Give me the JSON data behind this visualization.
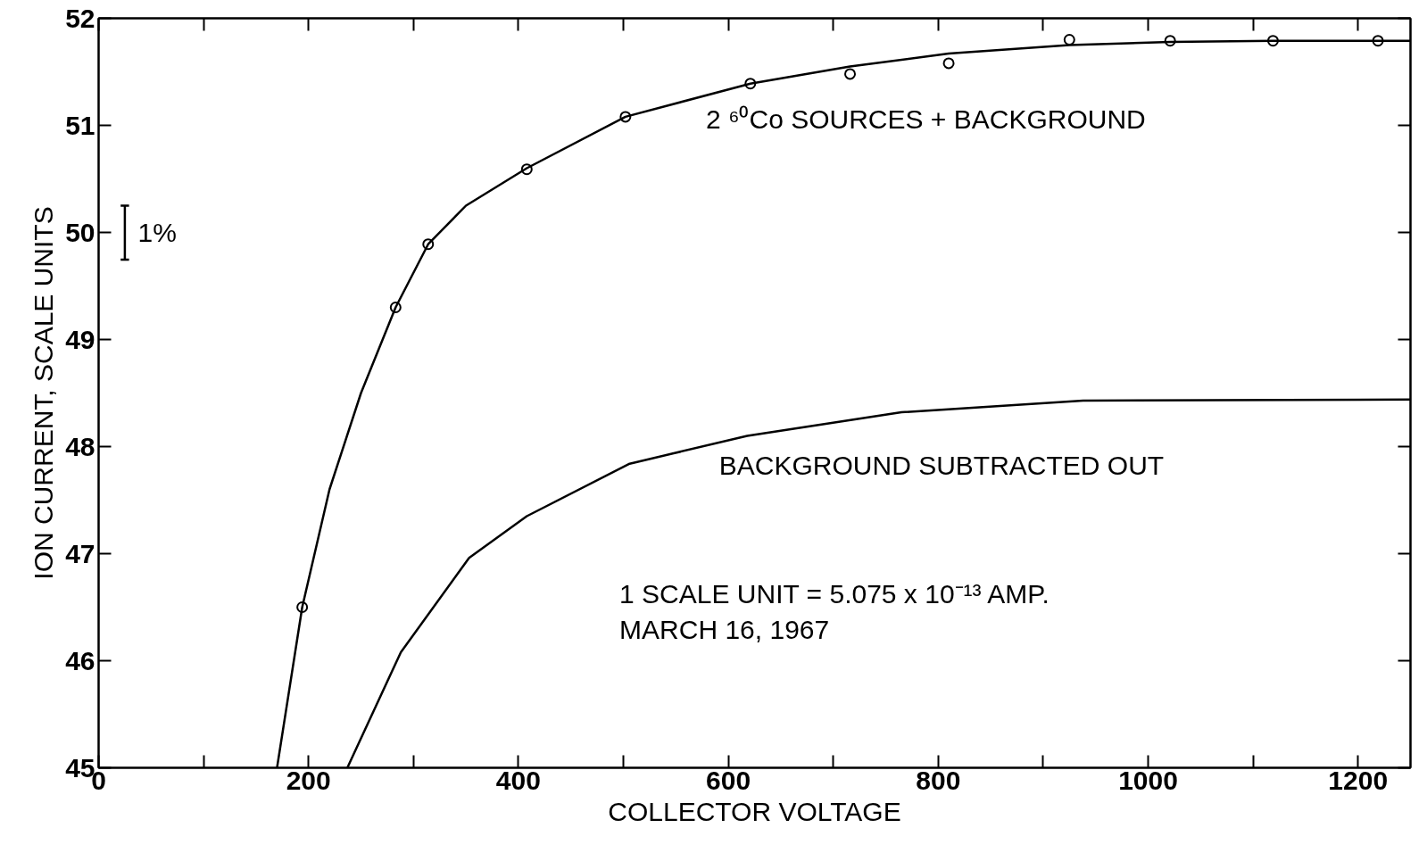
{
  "chart_data": {
    "type": "scatter",
    "xlabel": "COLLECTOR VOLTAGE",
    "ylabel": "ION CURRENT, SCALE UNITS",
    "xlim": [
      0,
      1250
    ],
    "ylim": [
      45,
      52
    ],
    "xticks": [
      0,
      {
        "value": 100,
        "label": null
      },
      200,
      {
        "value": 300,
        "label": null
      },
      400,
      {
        "value": 500,
        "label": null
      },
      600,
      {
        "value": 700,
        "label": null
      },
      800,
      {
        "value": 900,
        "label": null
      },
      1000,
      {
        "value": 1100,
        "label": null
      },
      1200
    ],
    "yticks": [
      45,
      46,
      47,
      48,
      49,
      50,
      51,
      52
    ],
    "grid": false,
    "marker": "circle",
    "line_style": "solid",
    "series": [
      {
        "color": "#000000",
        "x": [
          194,
          283,
          314,
          408,
          502,
          621,
          716,
          810,
          925,
          1021,
          1119,
          1219
        ],
        "values": [
          46.5,
          49.3,
          49.89,
          50.59,
          51.08,
          51.39,
          51.48,
          51.58,
          51.8,
          51.79,
          51.79,
          51.79
        ]
      },
      {
        "type": "line",
        "name": "2 ⁶⁰Co  SOURCES + BACKGROUND",
        "color": "#000000",
        "marker": "none",
        "x": [
          170,
          194,
          220,
          250,
          283,
          314,
          350,
          408,
          502,
          621,
          716,
          810,
          925,
          1021,
          1119,
          1250
        ],
        "values": [
          45,
          46.5,
          47.6,
          48.5,
          49.3,
          49.89,
          50.25,
          50.6,
          51.08,
          51.39,
          51.55,
          51.67,
          51.75,
          51.78,
          51.79,
          51.79
        ]
      },
      {
        "type": "line",
        "name": "BACKGROUND  SUBTRACTED  OUT",
        "color": "#000000",
        "marker": "none",
        "x": [
          237,
          288,
          353,
          408,
          506,
          618,
          765,
          938,
          1250
        ],
        "values": [
          45,
          46.08,
          46.96,
          47.35,
          47.84,
          48.1,
          48.32,
          48.43,
          48.44
        ]
      }
    ],
    "annotations": [
      "1 SCALE UNIT = 5.075 x 10⁻¹³  AMP.",
      "MARCH  16, 1967",
      "1%"
    ]
  }
}
